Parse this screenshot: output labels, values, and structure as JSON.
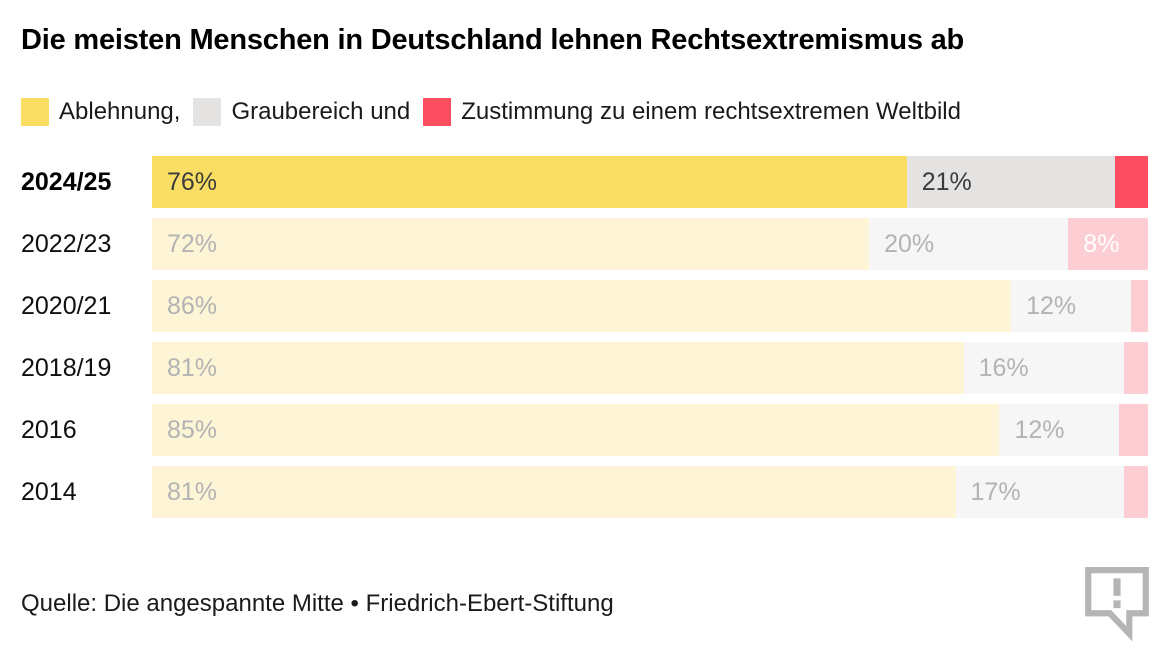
{
  "title": "Die meisten Menschen in Deutschland lehnen Rechtsextremismus ab",
  "legend": {
    "items": [
      {
        "label": "Ablehnung,",
        "color": "#FADE63"
      },
      {
        "label": "Graubereich und",
        "color": "#E4E3E2"
      },
      {
        "label": "Zustimmung zu einem rechtsextremen Weltbild",
        "color": "#FC4E60"
      }
    ]
  },
  "colors": {
    "active": [
      "#FADE63",
      "#E4E3E2",
      "#FC4E60"
    ],
    "muted": [
      "#FDF5D6",
      "#F6F6F6",
      "#FCCDD3"
    ],
    "active_label": "#3C3C3C",
    "muted_label": "#B3B3B3",
    "pink_label": "#FFFFFF",
    "icon_gray": "#B5B5B5"
  },
  "chart_data": {
    "type": "bar",
    "orientation": "horizontal",
    "stacked": true,
    "title": "Die meisten Menschen in Deutschland lehnen Rechtsextremismus ab",
    "categories": [
      "2024/25",
      "2022/23",
      "2020/21",
      "2018/19",
      "2016",
      "2014"
    ],
    "series": [
      {
        "name": "Ablehnung",
        "values": [
          76,
          72,
          86,
          81,
          85,
          81
        ]
      },
      {
        "name": "Graubereich",
        "values": [
          21,
          20,
          12,
          16,
          12,
          17
        ]
      },
      {
        "name": "Zustimmung zu einem rechtsextremen Weltbild",
        "values": [
          3.3,
          8,
          1.7,
          2.4,
          2.9,
          2.4
        ]
      }
    ],
    "value_unit": "%",
    "xlim": [
      0,
      100
    ],
    "highlighted_category": "2024/25",
    "legend_position": "top",
    "grid": false
  },
  "rows": [
    {
      "year": "2024/25",
      "highlighted": true,
      "segments": [
        {
          "series": "Ablehnung",
          "value": 76,
          "label": "76%"
        },
        {
          "series": "Graubereich",
          "value": 21,
          "label": "21%"
        },
        {
          "series": "Zustimmung",
          "value": 3.3,
          "label": ""
        }
      ]
    },
    {
      "year": "2022/23",
      "highlighted": false,
      "segments": [
        {
          "series": "Ablehnung",
          "value": 72,
          "label": "72%"
        },
        {
          "series": "Graubereich",
          "value": 20,
          "label": "20%"
        },
        {
          "series": "Zustimmung",
          "value": 8,
          "label": "8%"
        }
      ]
    },
    {
      "year": "2020/21",
      "highlighted": false,
      "segments": [
        {
          "series": "Ablehnung",
          "value": 86,
          "label": "86%"
        },
        {
          "series": "Graubereich",
          "value": 12,
          "label": "12%"
        },
        {
          "series": "Zustimmung",
          "value": 1.7,
          "label": ""
        }
      ]
    },
    {
      "year": "2018/19",
      "highlighted": false,
      "segments": [
        {
          "series": "Ablehnung",
          "value": 81,
          "label": "81%"
        },
        {
          "series": "Graubereich",
          "value": 16,
          "label": "16%"
        },
        {
          "series": "Zustimmung",
          "value": 2.4,
          "label": ""
        }
      ]
    },
    {
      "year": "2016",
      "highlighted": false,
      "segments": [
        {
          "series": "Ablehnung",
          "value": 85,
          "label": "85%"
        },
        {
          "series": "Graubereich",
          "value": 12,
          "label": "12%"
        },
        {
          "series": "Zustimmung",
          "value": 2.9,
          "label": ""
        }
      ]
    },
    {
      "year": "2014",
      "highlighted": false,
      "segments": [
        {
          "series": "Ablehnung",
          "value": 81,
          "label": "81%"
        },
        {
          "series": "Graubereich",
          "value": 17,
          "label": "17%"
        },
        {
          "series": "Zustimmung",
          "value": 2.4,
          "label": ""
        }
      ]
    }
  ],
  "source": {
    "text": "Quelle: Die angespannte Mitte • Friedrich-Ebert-Stiftung"
  },
  "icons": {
    "feedback": "speech-bubble-exclamation-icon"
  }
}
